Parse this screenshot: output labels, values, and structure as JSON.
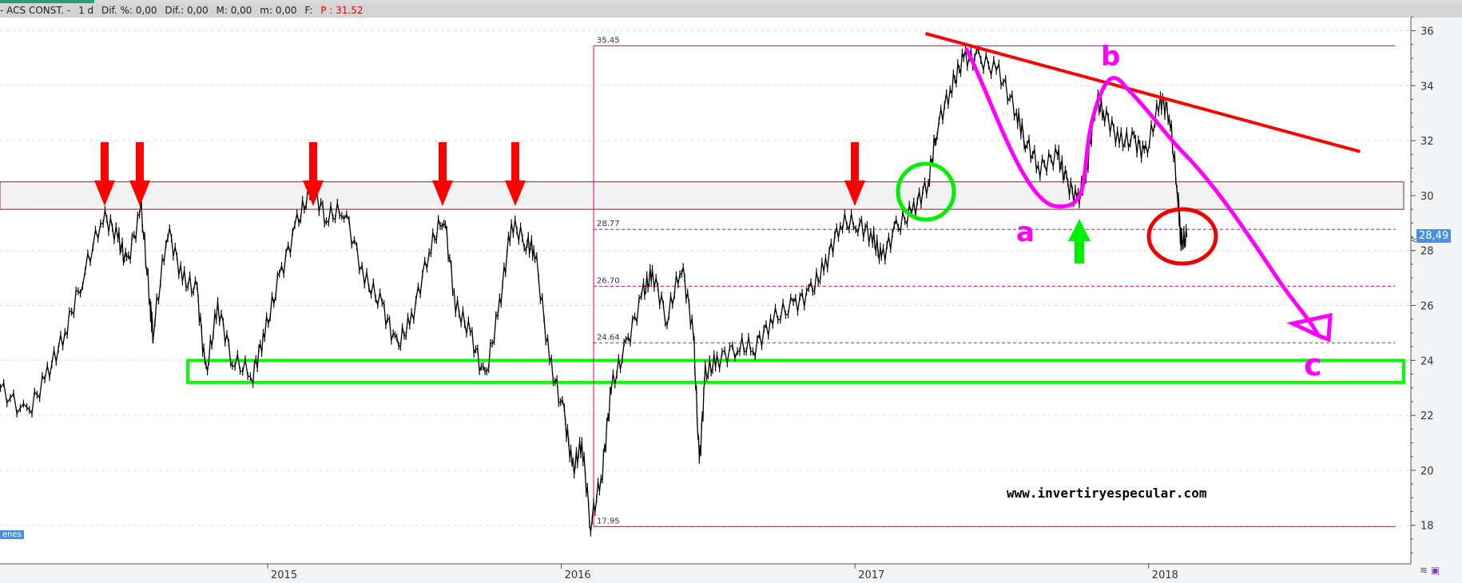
{
  "infobar": {
    "symbol": "- ACS CONST. -",
    "period": "1 d",
    "dif_pct": "Dif. %: 0,00",
    "dif": "Dif.: 0,00",
    "max": "M: 0,00",
    "min": "m: 0,00",
    "f": "F:",
    "price": "P : 31.52"
  },
  "price_tag": "28,49",
  "left_label": "enes",
  "watermark": "www.invertiryespecular.com",
  "chart_data": {
    "type": "line",
    "title": "",
    "xlabel": "",
    "ylabel": "",
    "x_ticks": [
      "2015",
      "2016",
      "2017",
      "2018"
    ],
    "y_ticks": [
      "36",
      "34",
      "32",
      "30",
      "28",
      "26",
      "24",
      "22",
      "20",
      "18"
    ],
    "ylim": [
      17,
      36.5
    ],
    "xlim": [
      2014.09,
      2018.85
    ],
    "y_axis_side": "right",
    "grid": "horizontal dashed",
    "series": [
      {
        "color": "#000000",
        "x": [
          2014.09,
          2014.18,
          2014.25,
          2014.31,
          2014.37,
          2014.44,
          2014.49,
          2014.52,
          2014.57,
          2014.6,
          2014.61,
          2014.66,
          2014.71,
          2014.76,
          2014.79,
          2014.83,
          2014.88,
          2014.95,
          2014.99,
          2015.04,
          2015.1,
          2015.15,
          2015.2,
          2015.26,
          2015.33,
          2015.39,
          2015.44,
          2015.49,
          2015.55,
          2015.6,
          2015.64,
          2015.69,
          2015.74,
          2015.79,
          2015.83,
          2015.88,
          2015.91,
          2015.96,
          2016.01,
          2016.04,
          2016.07,
          2016.1,
          2016.14,
          2016.17,
          2016.22,
          2016.28,
          2016.31,
          2016.36,
          2016.41,
          2016.45,
          2016.47,
          2016.49,
          2016.53,
          2016.6,
          2016.66,
          2016.72,
          2016.79,
          2016.85,
          2016.9,
          2016.95,
          2017.01,
          2017.06,
          2017.09,
          2017.14,
          2017.2,
          2017.25,
          2017.28,
          2017.33,
          2017.37,
          2017.42,
          2017.49,
          2017.55,
          2017.58,
          2017.63,
          2017.69,
          2017.72,
          2017.76,
          2017.79,
          2017.82,
          2017.85,
          2017.9,
          2017.95,
          2017.99,
          2018.04,
          2018.07,
          2018.1,
          2018.11,
          2018.13
        ],
        "y": [
          23,
          22,
          23.5,
          25,
          27,
          29.3,
          28.5,
          27.5,
          29.5,
          26,
          25,
          28.8,
          27,
          26.5,
          23.5,
          26,
          24,
          23.5,
          25,
          27,
          29,
          30.3,
          29.2,
          29.5,
          27,
          26,
          24.5,
          25.5,
          28,
          29.3,
          26,
          25,
          23.3,
          26,
          29,
          28.3,
          28,
          24,
          22,
          20,
          21,
          18,
          20,
          23,
          24.5,
          26.5,
          27.2,
          25.5,
          27.5,
          25,
          20.2,
          23.5,
          24,
          24.5,
          24.5,
          25.5,
          26,
          26.5,
          27.5,
          29,
          29,
          28.5,
          27.7,
          28.8,
          29.5,
          30.5,
          32.5,
          34,
          35,
          35,
          34.5,
          33,
          32,
          31,
          31.5,
          30.5,
          29.8,
          31,
          33.5,
          33,
          32,
          32,
          31.5,
          33.5,
          33,
          30,
          28.3,
          28.49
        ]
      }
    ],
    "fibonacci": {
      "color": "#e0006e",
      "start_x": 2016.11,
      "end_x": 2018.84,
      "levels": [
        {
          "value": 35.45,
          "label": "35.45",
          "style": "solid"
        },
        {
          "value": 28.77,
          "label": "28.77",
          "style": "dashed"
        },
        {
          "value": 26.7,
          "label": "26.70",
          "style": "dashed"
        },
        {
          "value": 24.64,
          "label": "24.64",
          "style": "dashed-dark"
        },
        {
          "value": 17.95,
          "label": "17.95",
          "style": "solid"
        }
      ]
    },
    "resistance_zone": {
      "from": 29.5,
      "to": 30.5,
      "color": "#f2f2f2",
      "border": "#7a2a2a"
    },
    "support_zone": {
      "from": 23.2,
      "to": 24.0,
      "color": "#00ff00"
    },
    "trendline": {
      "color": "#ff0000",
      "from": [
        2017.24,
        35.9
      ],
      "to": [
        2018.72,
        31.6
      ]
    },
    "annotations": {
      "arrow_color": "#ff0000",
      "green_color": "#00ee00",
      "magenta": "#ff00ff",
      "labels": [
        "a",
        "b",
        "c"
      ]
    }
  }
}
